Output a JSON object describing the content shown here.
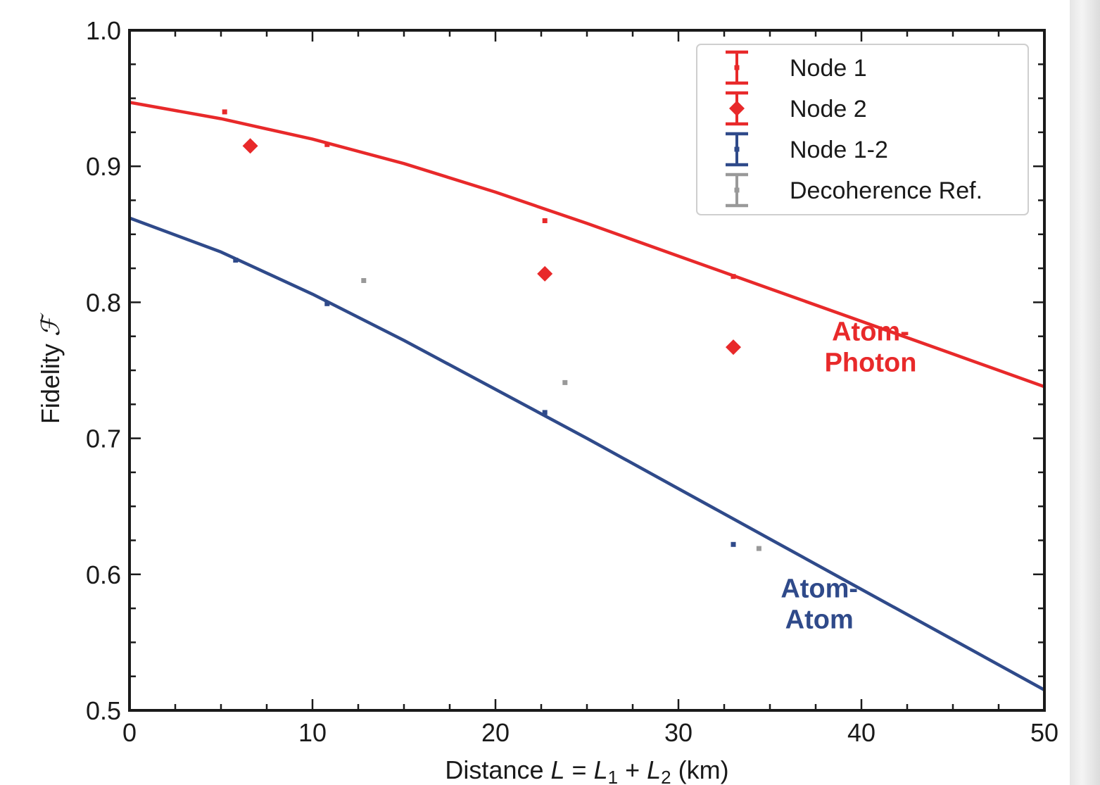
{
  "chart_data": {
    "type": "scatter",
    "xlabel_parts": [
      "Distance ",
      "L",
      " = ",
      "L",
      "1",
      " + ",
      "L",
      "2",
      " (km)"
    ],
    "ylabel_parts": [
      "Fidelity ",
      "ℱ"
    ],
    "xlim": [
      0,
      50
    ],
    "ylim": [
      0.5,
      1.0
    ],
    "xticks": [
      0,
      10,
      20,
      30,
      40,
      50
    ],
    "xtick_labels": [
      "0",
      "10",
      "20",
      "30",
      "40",
      "50"
    ],
    "yticks": [
      0.5,
      0.6,
      0.7,
      0.8,
      0.9,
      1.0
    ],
    "ytick_labels": [
      "0.5",
      "0.6",
      "0.7",
      "0.8",
      "0.9",
      "1.0"
    ],
    "grid": false,
    "legend_position": "top-right",
    "series": [
      {
        "name": "Node 1",
        "color": "#e8292a",
        "marker": "errorbar",
        "points": [
          {
            "x": 5.2,
            "y": 0.94,
            "err": 0.006
          },
          {
            "x": 10.8,
            "y": 0.916,
            "err": 0.006
          },
          {
            "x": 22.7,
            "y": 0.86,
            "err": 0.006
          },
          {
            "x": 33.0,
            "y": 0.819,
            "err": 0.008
          }
        ]
      },
      {
        "name": "Node 2",
        "color": "#e8292a",
        "marker": "diamond",
        "points": [
          {
            "x": 6.6,
            "y": 0.915,
            "err": 0.005
          },
          {
            "x": 22.7,
            "y": 0.821,
            "err": 0.008
          },
          {
            "x": 33.0,
            "y": 0.767,
            "err": 0.008
          }
        ]
      },
      {
        "name": "Node 1-2",
        "color": "#2f4a8a",
        "marker": "errorbar",
        "points": [
          {
            "x": 5.8,
            "y": 0.831,
            "err": 0.01
          },
          {
            "x": 10.8,
            "y": 0.799,
            "err": 0.011
          },
          {
            "x": 22.7,
            "y": 0.719,
            "err": 0.012
          },
          {
            "x": 33.0,
            "y": 0.622,
            "err": 0.015
          }
        ]
      },
      {
        "name": "Decoherence Ref.",
        "color": "#999999",
        "marker": "errorbar",
        "points": [
          {
            "x": 12.8,
            "y": 0.816,
            "err": 0.014
          },
          {
            "x": 23.8,
            "y": 0.741,
            "err": 0.013
          },
          {
            "x": 34.4,
            "y": 0.619,
            "err": 0.014
          }
        ]
      }
    ],
    "curves": [
      {
        "label": "Atom-Photon",
        "color": "#e8292a",
        "x": [
          0,
          5,
          10,
          15,
          20,
          25,
          30,
          35,
          40,
          45,
          50
        ],
        "y": [
          0.947,
          0.935,
          0.92,
          0.902,
          0.881,
          0.858,
          0.834,
          0.81,
          0.786,
          0.762,
          0.738
        ]
      },
      {
        "label": "Atom-Atom",
        "color": "#2f4a8a",
        "x": [
          0,
          5,
          10,
          15,
          20,
          25,
          30,
          35,
          40,
          45,
          50
        ],
        "y": [
          0.862,
          0.837,
          0.806,
          0.772,
          0.736,
          0.7,
          0.663,
          0.626,
          0.589,
          0.552,
          0.515
        ]
      }
    ],
    "annotations": [
      {
        "lines": [
          "Atom-",
          "Photon"
        ],
        "color": "#e8292a",
        "x": 40.5,
        "y": 0.772
      },
      {
        "lines": [
          "Atom-",
          "Atom"
        ],
        "color": "#2f4a8a",
        "x": 37.7,
        "y": 0.583
      }
    ]
  }
}
